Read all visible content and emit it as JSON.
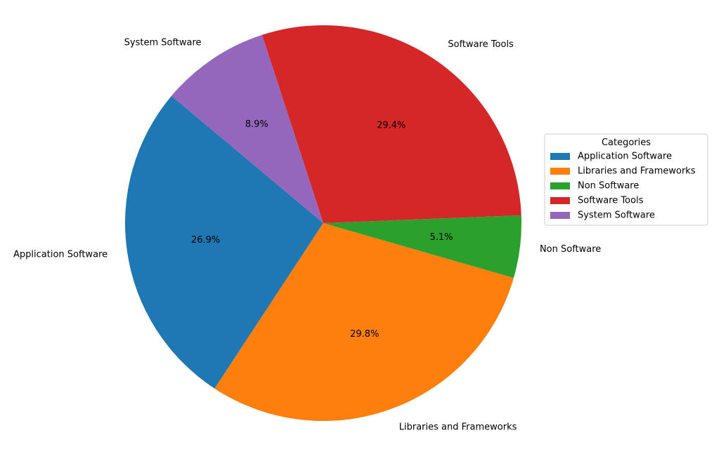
{
  "chart_data": {
    "type": "pie",
    "start_angle_deg": 140,
    "direction": "counterclockwise",
    "slices": [
      {
        "label": "Application Software",
        "value": 26.9,
        "pct_label": "26.9%",
        "color": "#1f77b4"
      },
      {
        "label": "Libraries and Frameworks",
        "value": 29.8,
        "pct_label": "29.8%",
        "color": "#ff7f0e"
      },
      {
        "label": "Non Software",
        "value": 5.1,
        "pct_label": "5.1%",
        "color": "#2ca02c"
      },
      {
        "label": "Software Tools",
        "value": 29.4,
        "pct_label": "29.4%",
        "color": "#d62728"
      },
      {
        "label": "System Software",
        "value": 8.9,
        "pct_label": "8.9%",
        "color": "#9467bd"
      }
    ],
    "legend": {
      "title": "Categories",
      "placement": "center-right",
      "entries": [
        "Application Software",
        "Libraries and Frameworks",
        "Non Software",
        "Software Tools",
        "System Software"
      ]
    }
  }
}
